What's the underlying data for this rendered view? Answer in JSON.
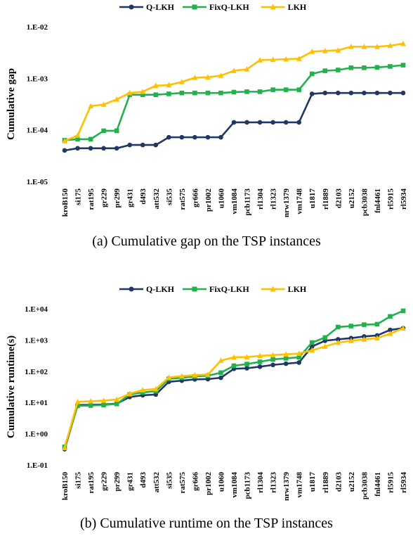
{
  "chart_data": [
    {
      "type": "line",
      "caption": "(a) Cumulative gap on the TSP instances",
      "ylabel": "Cumulative gap",
      "yscale": "log",
      "ylim": [
        1e-05,
        0.01
      ],
      "yticks": [
        1e-05,
        0.0001,
        0.001,
        0.01
      ],
      "ytick_labels": [
        "1.E-05",
        "1.E-04",
        "1.E-03",
        "1.E-02"
      ],
      "legend": "top-center",
      "categories": [
        "kroB150",
        "si175",
        "rat195",
        "gr229",
        "pr299",
        "gr431",
        "d493",
        "att532",
        "si535",
        "rat575",
        "gr666",
        "pr1002",
        "u1060",
        "vm1084",
        "pcb1173",
        "rl1304",
        "rl1323",
        "nrw1379",
        "vm1748",
        "u1817",
        "rl1889",
        "d2103",
        "u2152",
        "pcb3038",
        "fnl4461",
        "rl5915",
        "rl5934"
      ],
      "series": [
        {
          "name": "Q-LKH",
          "color": "#1f3864",
          "marker": "circle",
          "values": [
            4e-05,
            4.4e-05,
            4.4e-05,
            4.4e-05,
            4.4e-05,
            5.1e-05,
            5.1e-05,
            5.1e-05,
            7.2e-05,
            7.2e-05,
            7.2e-05,
            7.2e-05,
            7.2e-05,
            0.00014,
            0.00014,
            0.00014,
            0.00014,
            0.00014,
            0.00014,
            0.0005,
            0.00052,
            0.00052,
            0.00052,
            0.00052,
            0.00052,
            0.00052,
            0.00052
          ]
        },
        {
          "name": "FixQ-LKH",
          "color": "#22b14c",
          "marker": "square",
          "values": [
            6.3e-05,
            6.6e-05,
            6.6e-05,
            9.6e-05,
            9.6e-05,
            0.00048,
            0.00048,
            0.00048,
            0.0005,
            0.00052,
            0.00052,
            0.00052,
            0.00052,
            0.00054,
            0.00055,
            0.00055,
            0.0006,
            0.0006,
            0.0006,
            0.00122,
            0.0014,
            0.00145,
            0.0016,
            0.0016,
            0.00163,
            0.0017,
            0.0018
          ]
        },
        {
          "name": "LKH",
          "color": "#ffc000",
          "marker": "triangle",
          "values": [
            6.1e-05,
            7.8e-05,
            0.00029,
            0.00031,
            0.00039,
            0.00052,
            0.00055,
            0.00072,
            0.00074,
            0.00085,
            0.00103,
            0.00105,
            0.00113,
            0.0014,
            0.0015,
            0.00225,
            0.0023,
            0.00235,
            0.0024,
            0.0033,
            0.0034,
            0.0035,
            0.0041,
            0.0041,
            0.0041,
            0.0043,
            0.0047
          ]
        }
      ]
    },
    {
      "type": "line",
      "caption": "(b) Cumulative runtime on the TSP instances",
      "ylabel": "Cumulative runtime(s)",
      "yscale": "log",
      "ylim": [
        0.1,
        10000
      ],
      "yticks": [
        0.1,
        1,
        10,
        100,
        1000,
        10000
      ],
      "ytick_labels": [
        "1.E-01",
        "1.E+00",
        "1.E+01",
        "1.E+02",
        "1.E+03",
        "1.E+04"
      ],
      "legend": "top-center",
      "categories": [
        "kroB150",
        "si175",
        "rat195",
        "gr229",
        "pr299",
        "gr431",
        "d493",
        "att532",
        "si535",
        "rat575",
        "gr666",
        "pr1002",
        "u1060",
        "vm1084",
        "pcb1173",
        "rl1304",
        "rl1323",
        "nrw1379",
        "vm1748",
        "u1817",
        "rl1889",
        "d2103",
        "u2152",
        "pcb3038",
        "fnl4461",
        "rl5915",
        "rl5934"
      ],
      "series": [
        {
          "name": "Q-LKH",
          "color": "#1f3864",
          "marker": "circle",
          "values": [
            0.32,
            8.3,
            8.4,
            8.6,
            9.2,
            15,
            17,
            18,
            46,
            50,
            55,
            56,
            62,
            120,
            125,
            140,
            160,
            175,
            190,
            620,
            950,
            1050,
            1150,
            1300,
            1400,
            2100,
            2400
          ]
        },
        {
          "name": "FixQ-LKH",
          "color": "#22b14c",
          "marker": "square",
          "values": [
            0.38,
            7.8,
            8,
            8.3,
            9,
            18,
            21,
            23,
            57,
            62,
            68,
            72,
            90,
            150,
            170,
            200,
            240,
            260,
            280,
            830,
            1200,
            2600,
            2800,
            3100,
            3200,
            5700,
            8600
          ]
        },
        {
          "name": "LKH",
          "color": "#ffc000",
          "marker": "triangle",
          "values": [
            0.35,
            10.5,
            11,
            11.5,
            12.5,
            19,
            25,
            27,
            63,
            70,
            75,
            78,
            220,
            280,
            285,
            310,
            330,
            350,
            370,
            470,
            620,
            830,
            950,
            1050,
            1150,
            1600,
            2400
          ]
        }
      ]
    }
  ]
}
